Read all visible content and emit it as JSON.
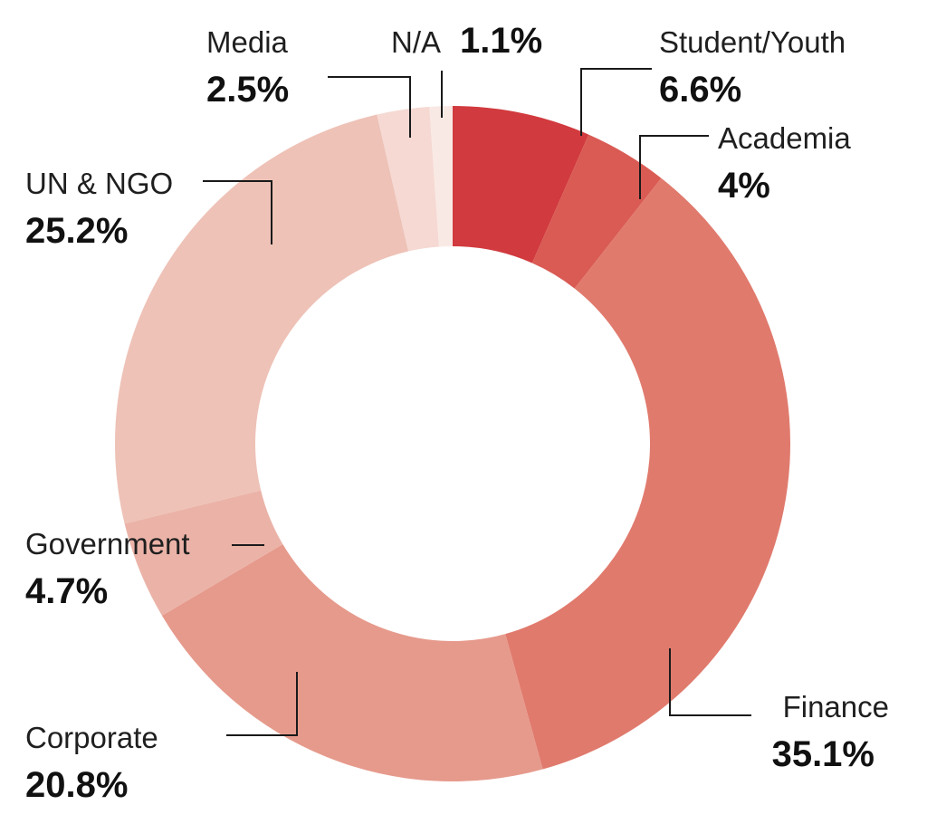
{
  "chart_data": {
    "type": "pie",
    "variant": "donut",
    "title": "",
    "categories": [
      "Student/Youth",
      "Academia",
      "Finance",
      "Corporate",
      "Government",
      "UN & NGO",
      "Media",
      "N/A"
    ],
    "values": [
      6.6,
      4,
      35.1,
      20.8,
      4.7,
      25.2,
      2.5,
      1.1
    ],
    "value_labels": [
      "6.6%",
      "4%",
      "35.1%",
      "20.8%",
      "4.7%",
      "25.2%",
      "2.5%",
      "1.1%"
    ],
    "unit": "%",
    "colors": [
      "#d13a3e",
      "#d95b54",
      "#e07a6d",
      "#e69a8c",
      "#ebb3a8",
      "#eec2b7",
      "#f5d9d2",
      "#f9e9e5"
    ],
    "legend": "none",
    "start_angle": "top",
    "direction": "clockwise"
  }
}
